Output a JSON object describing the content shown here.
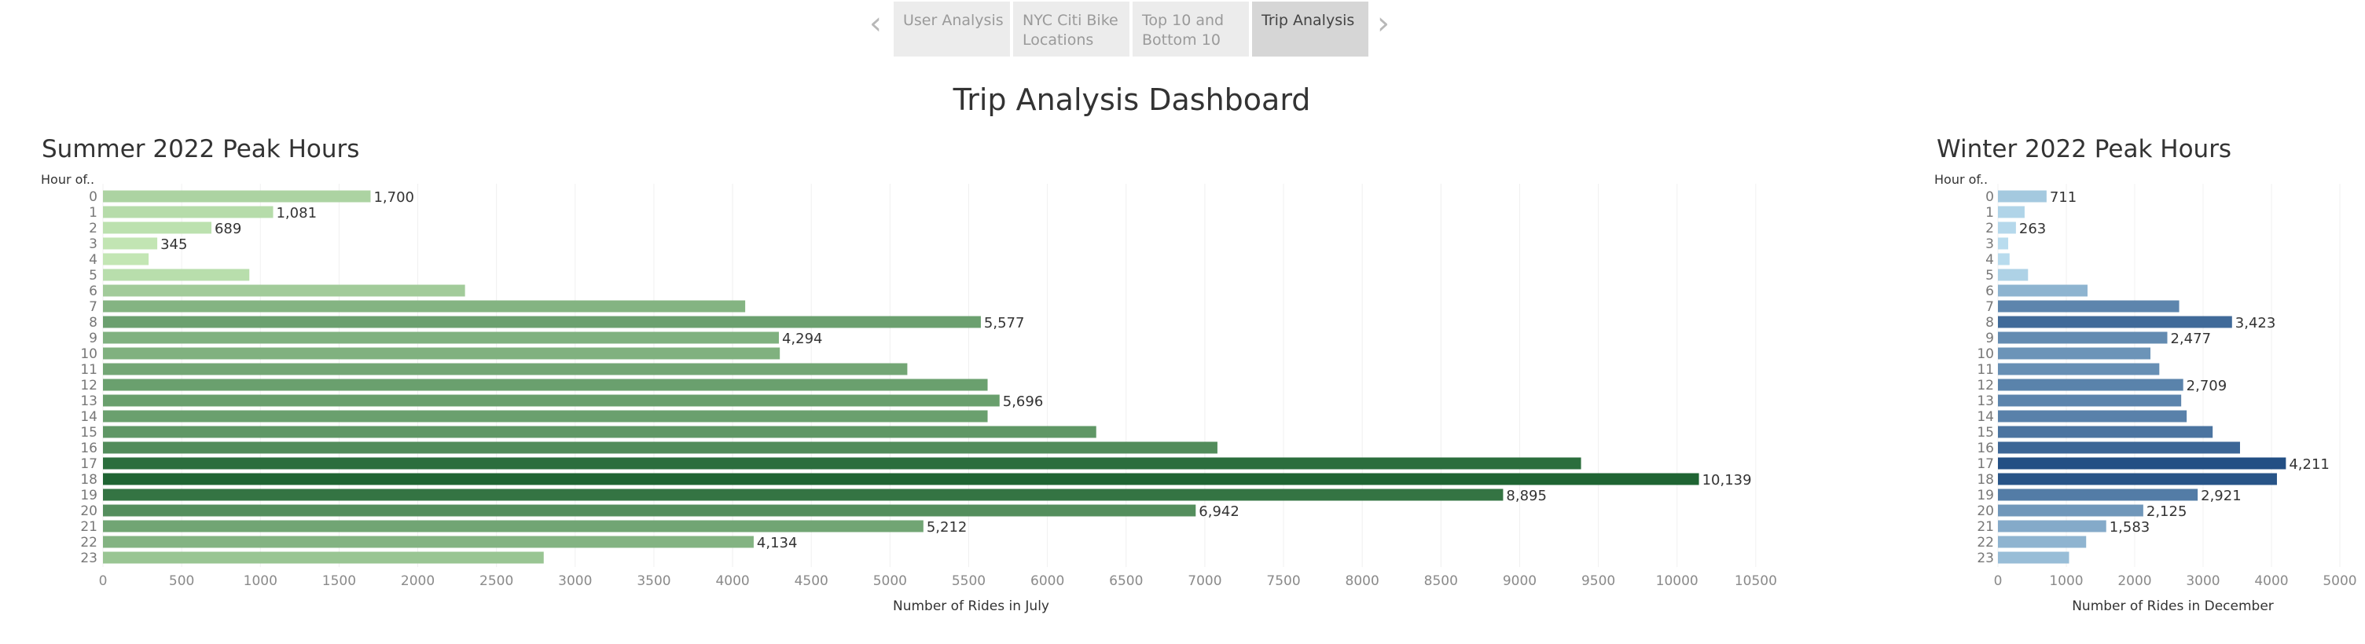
{
  "nav": {
    "prev_icon": "chevron-left-icon",
    "next_icon": "chevron-right-icon",
    "tabs": [
      {
        "label": "User Analysis",
        "active": false
      },
      {
        "label": "NYC Citi Bike\nLocations",
        "active": false
      },
      {
        "label": "Top 10 and\nBottom 10",
        "active": false
      },
      {
        "label": "Trip Analysis",
        "active": true
      }
    ]
  },
  "dashboard_title": "Trip Analysis Dashboard",
  "chart_data": [
    {
      "type": "bar",
      "orientation": "horizontal",
      "title": "Summer 2022 Peak Hours",
      "category_header": "Hour of..",
      "xlabel": "Number of Rides in July",
      "ylabel": "",
      "categories": [
        "0",
        "1",
        "2",
        "3",
        "4",
        "5",
        "6",
        "7",
        "8",
        "9",
        "10",
        "11",
        "12",
        "13",
        "14",
        "15",
        "16",
        "17",
        "18",
        "19",
        "20",
        "21",
        "22",
        "23"
      ],
      "values": [
        1700,
        1081,
        689,
        345,
        290,
        930,
        2300,
        4080,
        5577,
        4294,
        4300,
        5110,
        5620,
        5696,
        5620,
        6310,
        7080,
        9390,
        10139,
        8895,
        6942,
        5212,
        4134,
        2800
      ],
      "data_labels": {
        "0": "1,700",
        "1": "1,081",
        "2": "689",
        "3": "345",
        "8": "5,577",
        "9": "4,294",
        "13": "5,696",
        "18": "10,139",
        "19": "8,895",
        "20": "6,942",
        "21": "5,212",
        "22": "4,134"
      },
      "xticks": [
        "0",
        "500",
        "1000",
        "1500",
        "2000",
        "2500",
        "3000",
        "3500",
        "4000",
        "4500",
        "5000",
        "5500",
        "6000",
        "6500",
        "7000",
        "7500",
        "8000",
        "8500",
        "9000",
        "9500",
        "10000",
        "10500"
      ],
      "xlim": [
        0,
        11000
      ],
      "color_scale": {
        "low": "#c3e6b4",
        "high": "#1f6433"
      },
      "grid": true
    },
    {
      "type": "bar",
      "orientation": "horizontal",
      "title": "Winter 2022 Peak Hours",
      "category_header": "Hour of..",
      "xlabel": "Number of Rides in December",
      "ylabel": "",
      "categories": [
        "0",
        "1",
        "2",
        "3",
        "4",
        "5",
        "6",
        "7",
        "8",
        "9",
        "10",
        "11",
        "12",
        "13",
        "14",
        "15",
        "16",
        "17",
        "18",
        "19",
        "20",
        "21",
        "22",
        "23"
      ],
      "values": [
        711,
        390,
        263,
        150,
        170,
        440,
        1310,
        2650,
        3423,
        2477,
        2230,
        2360,
        2709,
        2680,
        2760,
        3140,
        3540,
        4211,
        4080,
        2921,
        2125,
        1583,
        1290,
        1040
      ],
      "data_labels": {
        "0": "711",
        "2": "263",
        "8": "3,423",
        "9": "2,477",
        "12": "2,709",
        "17": "4,211",
        "19": "2,921",
        "20": "2,125",
        "21": "1,583"
      },
      "xticks": [
        "0",
        "1000",
        "2000",
        "3000",
        "4000",
        "5000"
      ],
      "xlim": [
        0,
        5000
      ],
      "color_scale": {
        "low": "#b9dcee",
        "high": "#234f84"
      },
      "grid": true
    }
  ]
}
